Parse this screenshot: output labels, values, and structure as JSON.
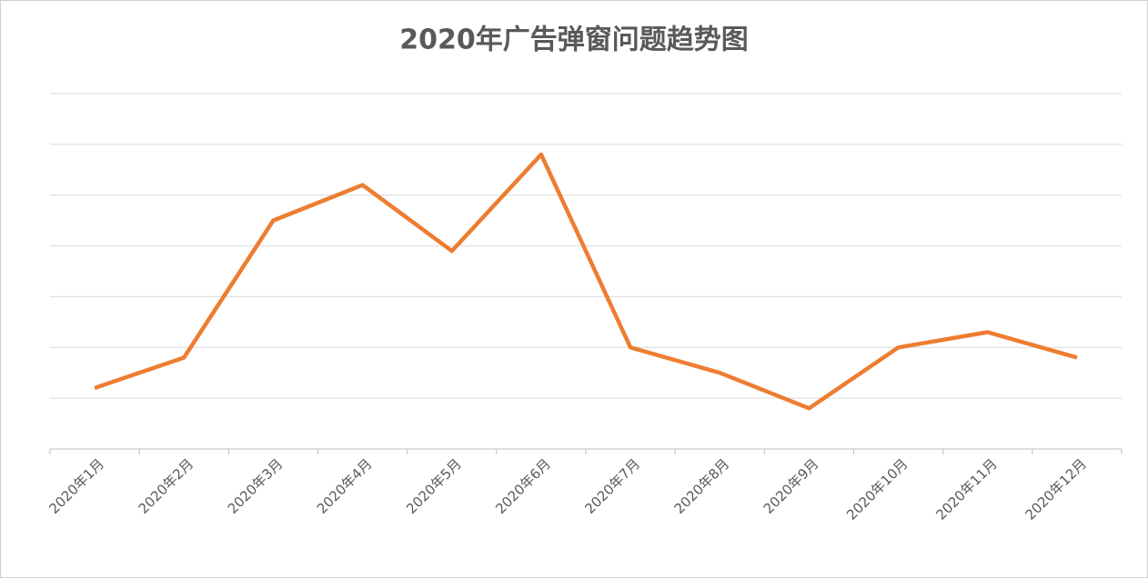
{
  "chart_data": {
    "type": "line",
    "title": "2020年广告弹窗问题趋势图",
    "categories": [
      "2020年1月",
      "2020年2月",
      "2020年3月",
      "2020年4月",
      "2020年5月",
      "2020年6月",
      "2020年7月",
      "2020年8月",
      "2020年9月",
      "2020年10月",
      "2020年11月",
      "2020年12月"
    ],
    "values": [
      1.2,
      1.8,
      4.5,
      5.2,
      3.9,
      5.8,
      2.0,
      1.5,
      0.8,
      2.0,
      2.3,
      1.8
    ],
    "color": "#ed7d31",
    "ylim": [
      0,
      7
    ],
    "yticks": [
      0,
      1,
      2,
      3,
      4,
      5,
      6,
      7
    ],
    "grid": true,
    "ytick_labels": false
  }
}
